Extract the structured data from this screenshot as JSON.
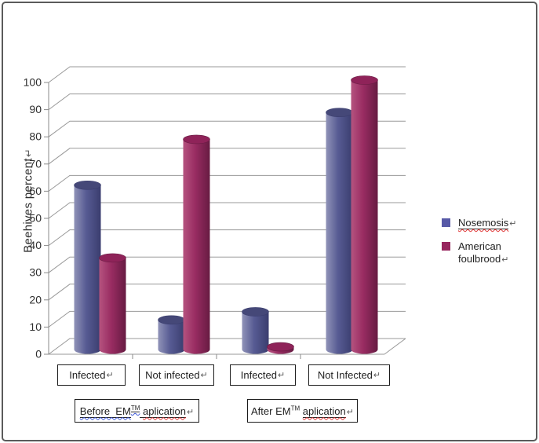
{
  "chart_data": {
    "type": "bar",
    "subtype": "3d-cylinder",
    "title": "",
    "ylabel": "Beehives percent",
    "xlabel": "",
    "ylim": [
      0,
      100
    ],
    "yticks": [
      0,
      10,
      20,
      30,
      40,
      50,
      60,
      70,
      80,
      90,
      100
    ],
    "grid": true,
    "legend_position": "right",
    "categories": [
      "Infected",
      "Not infected",
      "Infected",
      "Not Infected"
    ],
    "category_groups": [
      "Before  EM™ aplication",
      "After EM™ aplication"
    ],
    "series": [
      {
        "name": "Nosemosis",
        "values": [
          61,
          11,
          14,
          88
        ],
        "color": "#5759a7",
        "gradient": {
          "light": "#9093b8",
          "mid": "#575b93",
          "dark": "#3a3d6e",
          "top": "#454878"
        }
      },
      {
        "name": "American foulbrood",
        "values": [
          34,
          78,
          1,
          100
        ],
        "color": "#97265e",
        "gradient": {
          "light": "#b5537f",
          "mid": "#992c62",
          "dark": "#671b42",
          "top": "#8f2359"
        }
      }
    ]
  },
  "axis": {
    "grid_color": "#999999",
    "axis_color": "#8a8a8a",
    "tick_label_color": "#2e2e2e"
  },
  "group_boxes": {
    "before": {
      "prefix": "Before  EM",
      "tm": "TM",
      "space": " ",
      "word": "aplication"
    },
    "after": {
      "prefix": "After EM",
      "tm": "TM",
      "space": " ",
      "word": "aplication"
    }
  },
  "marks": {
    "line_break": "↵"
  }
}
